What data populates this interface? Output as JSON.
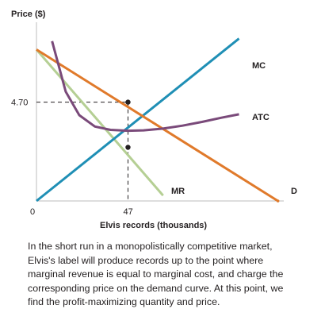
{
  "chart_data": {
    "type": "line",
    "title": "",
    "xlabel": "Elvis records (thousands)",
    "ylabel": "Price ($)",
    "origin_label": "0",
    "x_ticks": [
      {
        "value": 47,
        "label": "47"
      }
    ],
    "y_ticks": [
      {
        "value": 4.7,
        "label": "4.70"
      }
    ],
    "xlim": [
      0,
      127
    ],
    "ylim": [
      0,
      8.5
    ],
    "series": [
      {
        "name": "MC",
        "color": "#1f8fb5",
        "x": [
          0,
          104
        ],
        "y": [
          0,
          7.72
        ]
      },
      {
        "name": "ATC",
        "color": "#7a4a7a",
        "x": [
          8,
          15,
          22,
          30,
          38,
          47,
          55,
          65,
          75,
          85,
          95,
          104
        ],
        "y": [
          7.6,
          5.2,
          4.08,
          3.54,
          3.38,
          3.34,
          3.36,
          3.44,
          3.58,
          3.76,
          3.96,
          4.12
        ]
      },
      {
        "name": "D",
        "color": "#e07a2b",
        "x": [
          0,
          124
        ],
        "y": [
          7.2,
          0
        ]
      },
      {
        "name": "MR",
        "color": "#b5cf94",
        "x": [
          0,
          65
        ],
        "y": [
          7.2,
          0.26
        ]
      }
    ],
    "marks": [
      {
        "x": 47,
        "y": 4.7
      },
      {
        "x": 47,
        "y": 2.55
      }
    ]
  },
  "caption": "In the short run in a monopolistically competitive market, Elvis's label will produce records up to the point where marginal revenue is equal to marginal cost, and charge the corresponding price on the demand curve. At this point, we find the profit-maximizing quantity and price."
}
